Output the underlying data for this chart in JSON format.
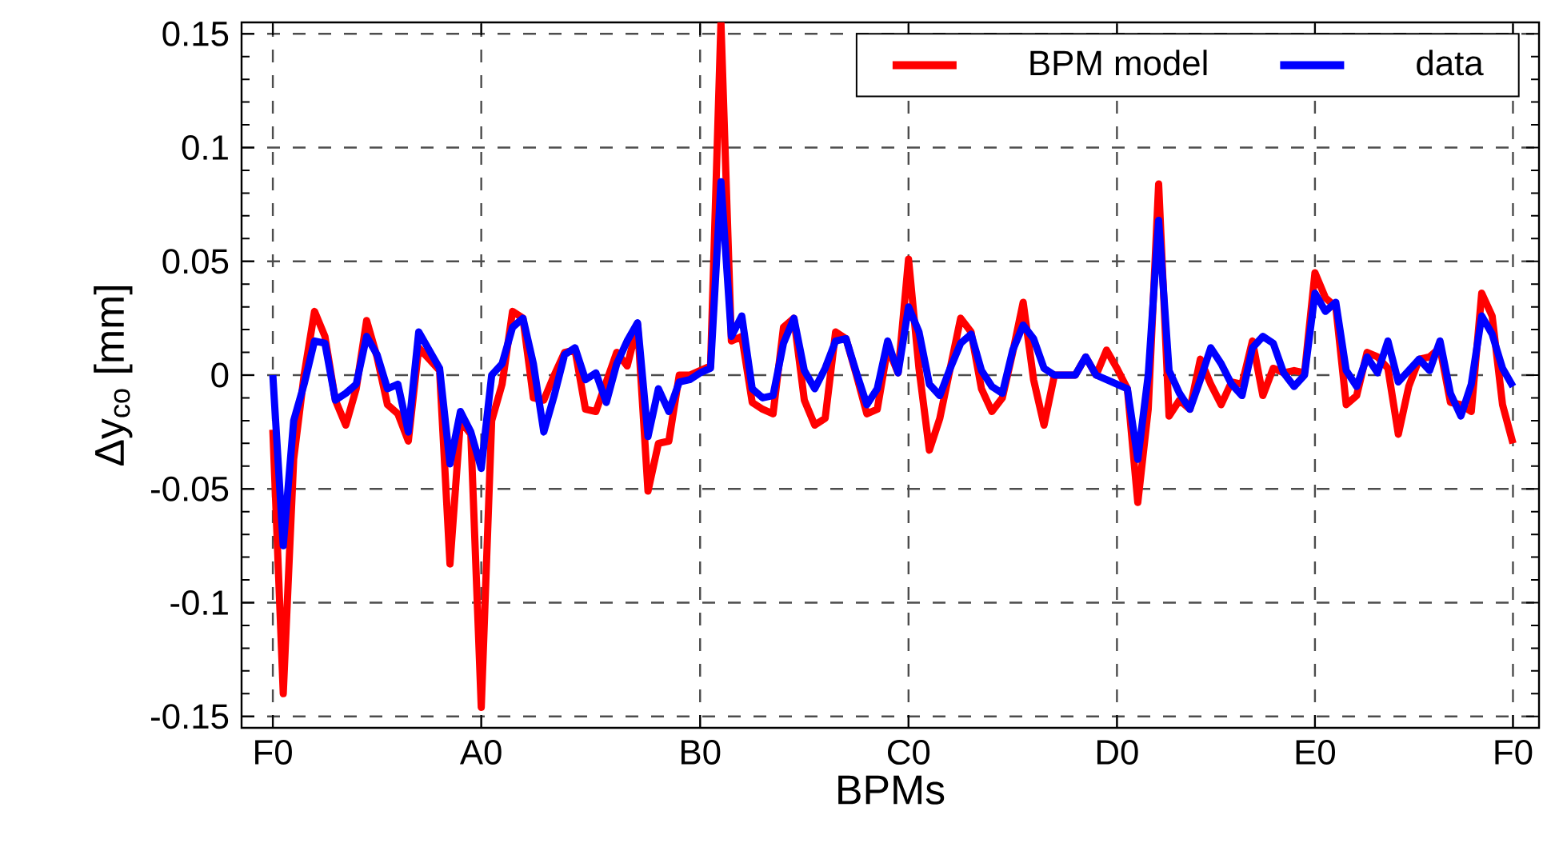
{
  "chart_data": {
    "type": "line",
    "xlabel": "BPMs",
    "ylabel": "Δy$_{co}$ [mm]",
    "categories": [
      "F0",
      null,
      null,
      null,
      null,
      null,
      null,
      null,
      null,
      null,
      null,
      null,
      null,
      null,
      null,
      null,
      null,
      null,
      null,
      null,
      "A0",
      null,
      null,
      null,
      null,
      null,
      null,
      null,
      null,
      null,
      null,
      null,
      null,
      null,
      null,
      null,
      null,
      null,
      null,
      null,
      null,
      "B0",
      null,
      null,
      null,
      null,
      null,
      null,
      null,
      null,
      null,
      null,
      null,
      null,
      null,
      null,
      null,
      null,
      null,
      null,
      null,
      "C0",
      null,
      null,
      null,
      null,
      null,
      null,
      null,
      null,
      null,
      null,
      null,
      null,
      null,
      null,
      null,
      null,
      null,
      null,
      null,
      "D0",
      null,
      null,
      null,
      null,
      null,
      null,
      null,
      null,
      null,
      null,
      null,
      null,
      null,
      null,
      null,
      null,
      null,
      null,
      "E0",
      null,
      null,
      null,
      null,
      null,
      null,
      null,
      null,
      null,
      null,
      null,
      null,
      null,
      null,
      null,
      null,
      null,
      null,
      "F0"
    ],
    "ylim": [
      -0.155,
      0.155
    ],
    "yticks": [
      -0.15,
      -0.1,
      -0.05,
      0,
      0.05,
      0.1,
      0.15
    ],
    "grid": true,
    "legend": "top right",
    "line_style": "solid",
    "marker": "none",
    "series": [
      {
        "name": "BPM model",
        "color": "#ff0000",
        "values": [
          -0.024,
          -0.14,
          -0.037,
          0.0,
          0.028,
          0.017,
          -0.011,
          -0.022,
          -0.006,
          0.024,
          0.008,
          -0.013,
          -0.017,
          -0.029,
          0.012,
          0.007,
          0.002,
          -0.083,
          -0.02,
          -0.026,
          -0.146,
          -0.02,
          -0.004,
          0.028,
          0.025,
          -0.01,
          -0.011,
          0.0,
          0.01,
          0.011,
          -0.015,
          -0.016,
          -0.003,
          0.01,
          0.004,
          0.022,
          -0.051,
          -0.03,
          -0.029,
          0.0,
          0.0,
          0.002,
          0.004,
          0.155,
          0.015,
          0.017,
          -0.012,
          -0.015,
          -0.017,
          0.021,
          0.025,
          -0.011,
          -0.022,
          -0.019,
          0.019,
          0.016,
          0.0,
          -0.017,
          -0.015,
          0.012,
          0.001,
          0.051,
          0.003,
          -0.033,
          -0.019,
          0.003,
          0.025,
          0.019,
          -0.006,
          -0.016,
          -0.01,
          0.01,
          0.032,
          -0.002,
          -0.022,
          0.0,
          0.0,
          0.0,
          0.008,
          0.0,
          0.011,
          0.003,
          -0.006,
          -0.056,
          -0.015,
          0.084,
          -0.018,
          -0.011,
          -0.015,
          0.007,
          -0.004,
          -0.013,
          -0.003,
          -0.004,
          0.015,
          -0.009,
          0.003,
          0.001,
          0.002,
          0.001,
          0.045,
          0.034,
          0.03,
          -0.013,
          -0.009,
          0.01,
          0.008,
          0.003,
          -0.026,
          -0.005,
          0.007,
          0.008,
          0.012,
          -0.012,
          -0.013,
          -0.016,
          0.036,
          0.026,
          -0.013,
          -0.03
        ]
      },
      {
        "name": "data",
        "color": "#0000ff",
        "values": [
          0.0,
          -0.075,
          -0.02,
          -0.004,
          0.015,
          0.014,
          -0.011,
          -0.008,
          -0.004,
          0.017,
          0.009,
          -0.006,
          -0.004,
          -0.025,
          0.019,
          0.011,
          0.003,
          -0.039,
          -0.016,
          -0.025,
          -0.041,
          0.0,
          0.005,
          0.021,
          0.025,
          0.005,
          -0.025,
          -0.009,
          0.009,
          0.012,
          -0.002,
          0.001,
          -0.012,
          0.005,
          0.015,
          0.023,
          -0.027,
          -0.006,
          -0.016,
          -0.003,
          -0.002,
          0.001,
          0.003,
          0.085,
          0.017,
          0.026,
          -0.006,
          -0.01,
          -0.009,
          0.014,
          0.025,
          0.002,
          -0.006,
          0.003,
          0.015,
          0.016,
          0.001,
          -0.013,
          -0.006,
          0.015,
          0.001,
          0.03,
          0.019,
          -0.004,
          -0.009,
          0.003,
          0.014,
          0.018,
          0.002,
          -0.005,
          -0.008,
          0.011,
          0.022,
          0.016,
          0.003,
          0.0,
          0.0,
          0.0,
          0.008,
          0.0,
          -0.002,
          -0.004,
          -0.006,
          -0.037,
          0.0,
          0.068,
          0.002,
          -0.008,
          -0.015,
          -0.002,
          0.012,
          0.005,
          -0.004,
          -0.009,
          0.012,
          0.017,
          0.014,
          0.001,
          -0.005,
          0.0,
          0.036,
          0.028,
          0.032,
          0.002,
          -0.005,
          0.008,
          0.001,
          0.015,
          -0.003,
          0.002,
          0.007,
          0.002,
          0.015,
          -0.008,
          -0.018,
          -0.004,
          0.026,
          0.018,
          0.003,
          -0.005
        ]
      }
    ]
  }
}
